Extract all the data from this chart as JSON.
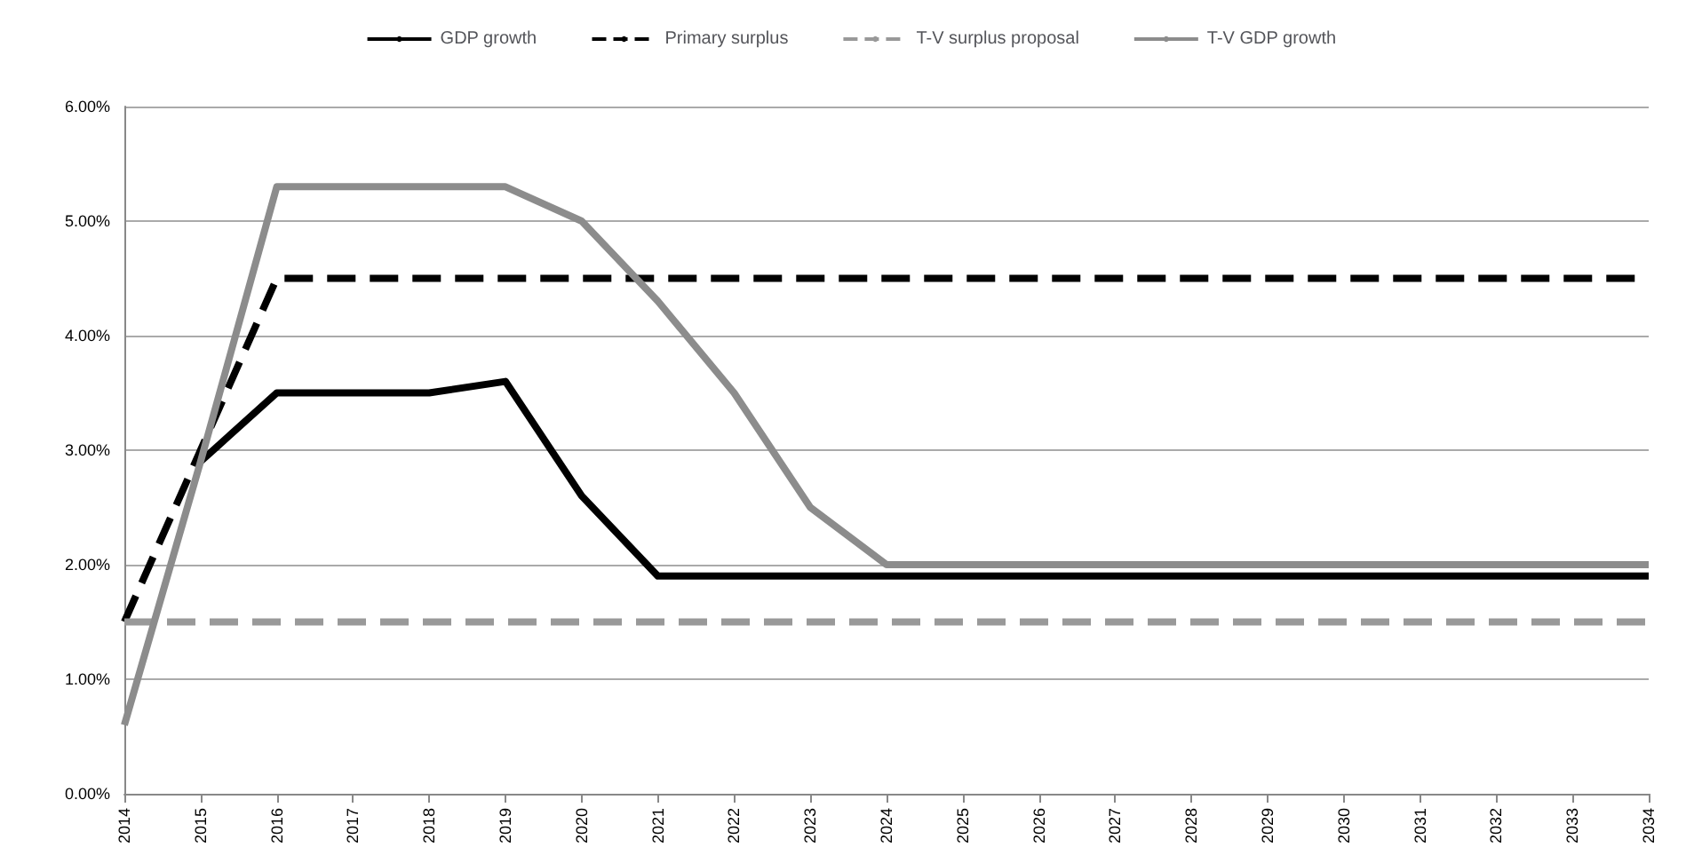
{
  "chart_data": {
    "type": "line",
    "categories": [
      "2014",
      "2015",
      "2016",
      "2017",
      "2018",
      "2019",
      "2020",
      "2021",
      "2022",
      "2023",
      "2024",
      "2025",
      "2026",
      "2027",
      "2028",
      "2029",
      "2030",
      "2031",
      "2032",
      "2033",
      "2034"
    ],
    "series": [
      {
        "name": "GDP growth",
        "color": "#000000",
        "line_style": "solid",
        "values": [
          null,
          2.9,
          3.5,
          3.5,
          3.5,
          3.6,
          2.6,
          1.9,
          1.9,
          1.9,
          1.9,
          1.9,
          1.9,
          1.9,
          1.9,
          1.9,
          1.9,
          1.9,
          1.9,
          1.9,
          1.9
        ]
      },
      {
        "name": "Primary surplus",
        "color": "#000000",
        "line_style": "dashed",
        "values": [
          1.5,
          3.0,
          4.5,
          4.5,
          4.5,
          4.5,
          4.5,
          4.5,
          4.5,
          4.5,
          4.5,
          4.5,
          4.5,
          4.5,
          4.5,
          4.5,
          4.5,
          4.5,
          4.5,
          4.5,
          4.5
        ]
      },
      {
        "name": "T-V surplus proposal",
        "color": "#999999",
        "line_style": "dashed",
        "values": [
          1.5,
          1.5,
          1.5,
          1.5,
          1.5,
          1.5,
          1.5,
          1.5,
          1.5,
          1.5,
          1.5,
          1.5,
          1.5,
          1.5,
          1.5,
          1.5,
          1.5,
          1.5,
          1.5,
          1.5,
          1.5
        ]
      },
      {
        "name": "T-V GDP growth",
        "color": "#8c8c8c",
        "line_style": "solid",
        "values": [
          0.6,
          2.9,
          5.3,
          5.3,
          5.3,
          5.3,
          5.0,
          4.3,
          3.5,
          2.5,
          2.0,
          2.0,
          2.0,
          2.0,
          2.0,
          2.0,
          2.0,
          2.0,
          2.0,
          2.0,
          2.0
        ]
      }
    ],
    "ylim": [
      0,
      6
    ],
    "yticks": [
      {
        "value": 0,
        "label": "0.00%"
      },
      {
        "value": 1,
        "label": "1.00%"
      },
      {
        "value": 2,
        "label": "2.00%"
      },
      {
        "value": 3,
        "label": "3.00%"
      },
      {
        "value": 4,
        "label": "4.00%"
      },
      {
        "value": 5,
        "label": "5.00%"
      },
      {
        "value": 6,
        "label": "6.00%"
      }
    ],
    "grid": "y",
    "legend": "top",
    "marker": "none"
  }
}
